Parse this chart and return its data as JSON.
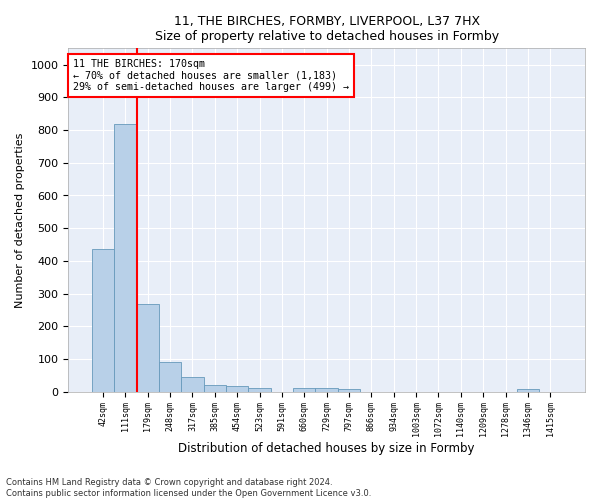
{
  "title1": "11, THE BIRCHES, FORMBY, LIVERPOOL, L37 7HX",
  "title2": "Size of property relative to detached houses in Formby",
  "xlabel": "Distribution of detached houses by size in Formby",
  "ylabel": "Number of detached properties",
  "bar_categories": [
    "42sqm",
    "111sqm",
    "179sqm",
    "248sqm",
    "317sqm",
    "385sqm",
    "454sqm",
    "523sqm",
    "591sqm",
    "660sqm",
    "729sqm",
    "797sqm",
    "866sqm",
    "934sqm",
    "1003sqm",
    "1072sqm",
    "1140sqm",
    "1209sqm",
    "1278sqm",
    "1346sqm",
    "1415sqm"
  ],
  "bar_heights": [
    435,
    820,
    268,
    92,
    45,
    22,
    16,
    11,
    0,
    11,
    11,
    9,
    0,
    0,
    0,
    0,
    0,
    0,
    0,
    9,
    0
  ],
  "bar_color": "#b8d0e8",
  "bar_edge_color": "#6699bb",
  "vline_x": 1.5,
  "vline_color": "red",
  "annotation_text": "11 THE BIRCHES: 170sqm\n← 70% of detached houses are smaller (1,183)\n29% of semi-detached houses are larger (499) →",
  "annotation_box_color": "white",
  "annotation_box_edge": "red",
  "ylim": [
    0,
    1050
  ],
  "yticks": [
    0,
    100,
    200,
    300,
    400,
    500,
    600,
    700,
    800,
    900,
    1000
  ],
  "footer": "Contains HM Land Registry data © Crown copyright and database right 2024.\nContains public sector information licensed under the Open Government Licence v3.0.",
  "bg_color": "#ffffff",
  "plot_bg_color": "#e8eef8"
}
